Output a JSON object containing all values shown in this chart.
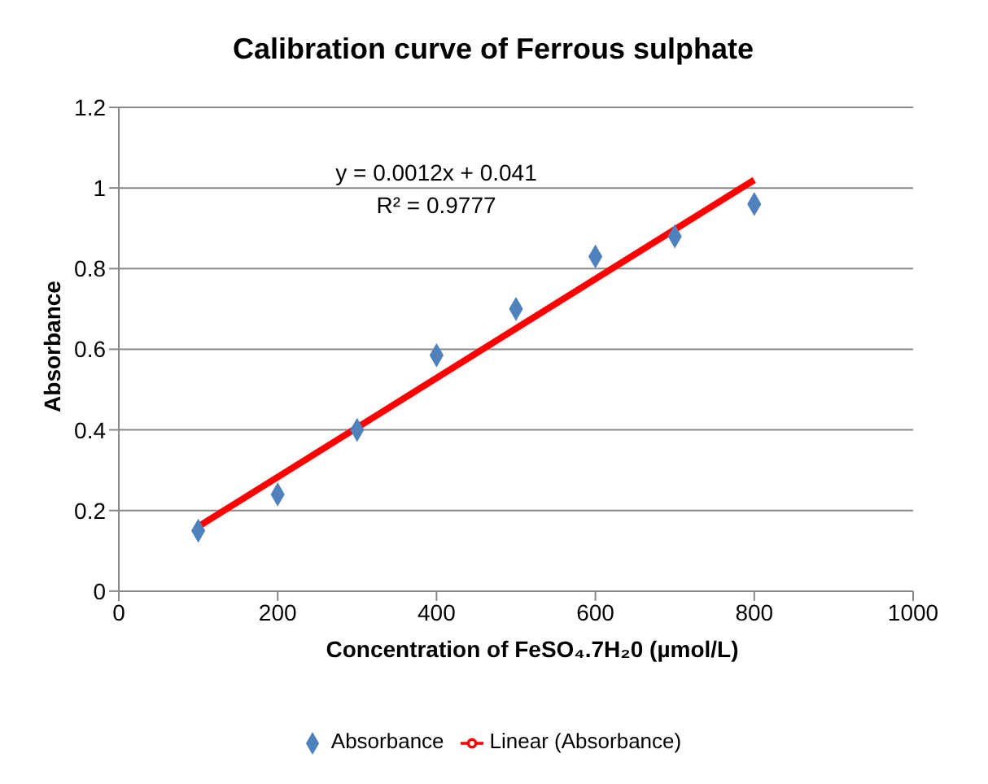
{
  "chart_data": {
    "type": "scatter",
    "title": "Calibration curve of Ferrous sulphate",
    "xlabel": "Concentration of FeSO₄.7H₂0 (µmol/L)",
    "ylabel": "Absorbance",
    "annotations": [
      "y = 0.0012x + 0.041",
      "R² = 0.9777"
    ],
    "series": [
      {
        "name": "Absorbance",
        "marker": "diamond",
        "color": "#4f81bd",
        "x": [
          100,
          200,
          300,
          400,
          500,
          600,
          700,
          800
        ],
        "values": [
          0.15,
          0.24,
          0.4,
          0.585,
          0.7,
          0.83,
          0.88,
          0.96
        ]
      },
      {
        "name": "Linear (Absorbance)",
        "type": "line",
        "marker": "none",
        "color": "#ff0000",
        "x": [
          100,
          800
        ],
        "values": [
          0.16,
          1.02
        ]
      }
    ],
    "xlim": [
      0,
      1000
    ],
    "xticks": [
      0,
      200,
      400,
      600,
      800,
      1000
    ],
    "ylim": [
      0,
      1.2
    ],
    "yticks": [
      0,
      0.2,
      0.4,
      0.6,
      0.8,
      1,
      1.2
    ],
    "grid": "y",
    "legend": "bottom"
  }
}
